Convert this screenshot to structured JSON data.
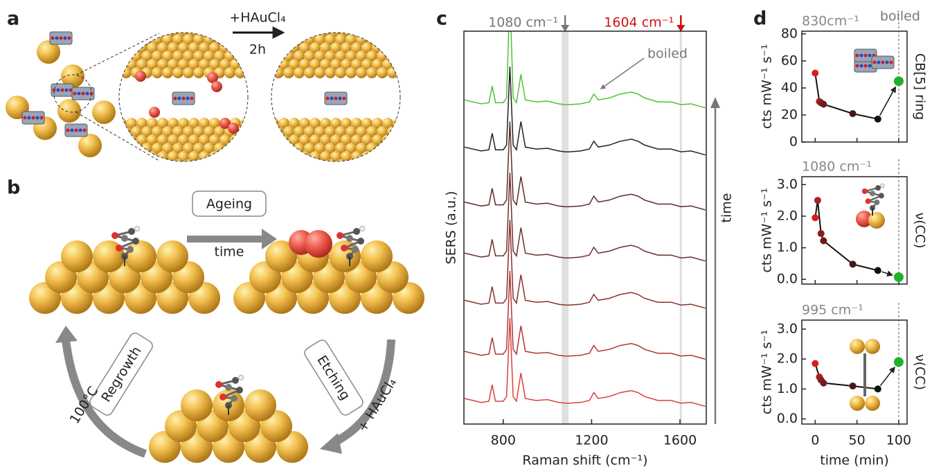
{
  "panel_labels": [
    "a",
    "b",
    "c",
    "d"
  ],
  "panel_a": {
    "reagent": "+HAuCl₄",
    "duration": "2h"
  },
  "panel_b": {
    "ageing": "Ageing",
    "ageing_sub": "time",
    "etching": "Etching",
    "etching_sub": "+ HAuCl₄",
    "regrowth": "Regrowth",
    "regrowth_sub": "100°C"
  },
  "chart_data": [
    {
      "type": "line",
      "ylabel": "SERS (a.u.)",
      "xlabel": "Raman shift (cm⁻¹)",
      "x": [
        625,
        700,
        735,
        750,
        765,
        800,
        815,
        830,
        845,
        860,
        880,
        900,
        950,
        1000,
        1050,
        1080,
        1100,
        1150,
        1190,
        1210,
        1230,
        1280,
        1330,
        1380,
        1410,
        1440,
        1500,
        1560,
        1604,
        1650,
        1715
      ],
      "xlim": [
        622,
        1719
      ],
      "xticks": [
        800,
        1200,
        1600
      ],
      "ylim": [
        0,
        100
      ],
      "series": [
        {
          "color": "#d8403c",
          "values": [
            6.5,
            5.5,
            5.8,
            10,
            5.8,
            5.8,
            7,
            27,
            7,
            5.8,
            13,
            6.5,
            6,
            6.2,
            5.5,
            5.3,
            5.3,
            5.5,
            6,
            8,
            6.5,
            7,
            8,
            8.5,
            8,
            7,
            6,
            6,
            5.3,
            5.5,
            4.5
          ]
        },
        {
          "color": "#b03434",
          "values": [
            18.5,
            17.5,
            17.8,
            22,
            17.8,
            17.8,
            19,
            39,
            19,
            17.8,
            25,
            18.5,
            18,
            18.2,
            17.5,
            17.3,
            17.3,
            17.5,
            18,
            20,
            18.5,
            19,
            20,
            20.5,
            20,
            19,
            18,
            18,
            17.3,
            17.5,
            16.5
          ]
        },
        {
          "color": "#8c2e2c",
          "values": [
            31.5,
            30.5,
            30.8,
            35,
            30.8,
            30.8,
            32,
            52,
            32,
            30.8,
            38,
            31.5,
            31,
            31.2,
            30.5,
            30.3,
            30.3,
            30.5,
            31,
            33,
            31.5,
            32,
            33,
            33.5,
            33,
            32,
            31,
            31,
            30.3,
            30.5,
            29.5
          ]
        },
        {
          "color": "#6e2e2c",
          "values": [
            43.5,
            42.5,
            42.8,
            47,
            42.8,
            42.8,
            44,
            64,
            44,
            42.8,
            50,
            43.5,
            43,
            43.2,
            42.5,
            42.3,
            42.3,
            42.5,
            43,
            45,
            43.5,
            44,
            45,
            45.5,
            45,
            44,
            43,
            43,
            42.3,
            42.5,
            41.5
          ]
        },
        {
          "color": "#5a2a28",
          "values": [
            56.5,
            55.5,
            55.8,
            60,
            55.8,
            55.8,
            57,
            77,
            57,
            55.8,
            63,
            56.5,
            56,
            56.2,
            55.5,
            55.3,
            55.3,
            55.5,
            56,
            58,
            56.5,
            57,
            58,
            58.5,
            58,
            57,
            56,
            56,
            55.3,
            55.5,
            54.5
          ]
        },
        {
          "color": "#222222",
          "values": [
            70.5,
            69.5,
            69.8,
            74,
            69.8,
            69.8,
            71,
            91,
            71,
            69.8,
            77,
            70.5,
            70,
            70.2,
            69.5,
            69.3,
            69.3,
            69.5,
            70,
            72,
            70.5,
            71,
            72,
            72.5,
            72,
            71,
            70,
            70,
            69.3,
            69.5,
            68.5
          ]
        },
        {
          "color": "#4fc03a",
          "values": [
            82.5,
            81.5,
            81.8,
            86,
            81.8,
            81.8,
            83,
            110,
            83,
            81.8,
            89,
            82.5,
            82,
            82.2,
            81.5,
            81.3,
            81.3,
            81.5,
            82,
            84,
            82.5,
            83,
            84,
            84.5,
            84,
            83,
            82,
            82,
            81.3,
            81.5,
            80.5
          ]
        }
      ],
      "highlights": [
        {
          "x": 1080,
          "label": "1080 cm⁻¹",
          "color": "#777777"
        },
        {
          "x": 1604,
          "label": "1604 cm⁻¹",
          "color": "#d01010"
        }
      ],
      "annotations": {
        "boiled": "boiled",
        "time": "time"
      }
    },
    {
      "type": "scatter",
      "title": "830cm⁻¹",
      "side_label": "CB[5] ring",
      "ylabel": "cts mW⁻¹ s⁻¹",
      "xlim": [
        -16,
        110
      ],
      "xticks": [
        0,
        50,
        100
      ],
      "ylim": [
        0,
        82
      ],
      "yticks": [
        0,
        20,
        40,
        60,
        80
      ],
      "vline": 100,
      "vline_label": "boiled",
      "series": [
        {
          "x": [
            0,
            5,
            7,
            10,
            45,
            75
          ],
          "values": [
            51,
            30,
            29,
            28,
            21,
            17
          ],
          "colors": [
            "#d42020",
            "#a82222",
            "#8a2020",
            "#6e1c1c",
            "#4a1515",
            "#111111"
          ]
        },
        {
          "x": [
            100
          ],
          "values": [
            45
          ],
          "color": "#22b02c"
        }
      ]
    },
    {
      "type": "scatter",
      "title": "1080 cm⁻¹",
      "side_label": "ν(CC)",
      "ylabel": "cts mW⁻¹ s⁻¹",
      "xlim": [
        -16,
        110
      ],
      "xticks": [
        0,
        50,
        100
      ],
      "ylim": [
        -0.15,
        3.25
      ],
      "yticks": [
        {
          "value": 0,
          "label": "0.0"
        },
        {
          "value": 1,
          "label": "1.0"
        },
        {
          "value": 2,
          "label": "2.0"
        },
        {
          "value": 3,
          "label": "3.0"
        }
      ],
      "vline": 100,
      "series": [
        {
          "x": [
            0,
            3,
            7,
            10,
            45,
            75
          ],
          "values": [
            1.95,
            2.5,
            1.45,
            1.22,
            0.48,
            0.28
          ],
          "colors": [
            "#d42020",
            "#a82222",
            "#8a2020",
            "#6e1c1c",
            "#4a1515",
            "#111111"
          ]
        },
        {
          "x": [
            100
          ],
          "values": [
            0.07
          ],
          "color": "#22b02c"
        }
      ]
    },
    {
      "type": "scatter",
      "title": "995 cm⁻¹",
      "side_label": "ν(CC)",
      "ylabel": "cts mW⁻¹ s⁻¹",
      "xlabel": "time (min)",
      "xlim": [
        -16,
        110
      ],
      "xticks": [
        0,
        50,
        100
      ],
      "ylim": [
        -0.17,
        3.3
      ],
      "yticks": [
        {
          "value": 0,
          "label": "0.0"
        },
        {
          "value": 1,
          "label": "1.0"
        },
        {
          "value": 2,
          "label": "2.0"
        },
        {
          "value": 3,
          "label": "3.0"
        }
      ],
      "vline": 100,
      "series": [
        {
          "x": [
            0,
            5,
            7,
            10,
            45,
            75
          ],
          "values": [
            1.85,
            1.4,
            1.3,
            1.2,
            1.1,
            1.0
          ],
          "colors": [
            "#d42020",
            "#a82222",
            "#8a2020",
            "#6e1c1c",
            "#4a1515",
            "#111111"
          ]
        },
        {
          "x": [
            100
          ],
          "values": [
            1.9
          ],
          "color": "#22b02c"
        }
      ]
    }
  ]
}
